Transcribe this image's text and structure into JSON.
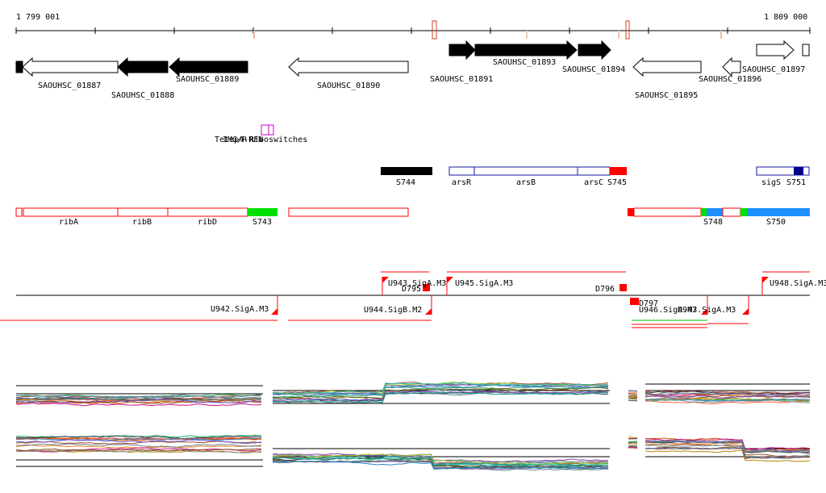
{
  "ruler": {
    "start_label": "1 799 001",
    "end_label": "1 809 000"
  },
  "genes": [
    {
      "id": "SAOUHSC_01887",
      "strand": "-",
      "fill": "white"
    },
    {
      "id": "SAOUHSC_01888",
      "strand": "-",
      "fill": "black"
    },
    {
      "id": "SAOUHSC_01889",
      "strand": "-",
      "fill": "black"
    },
    {
      "id": "SAOUHSC_01890",
      "strand": "-",
      "fill": "white"
    },
    {
      "id": "SAOUHSC_01891",
      "strand": "+",
      "fill": "black"
    },
    {
      "id": "SAOUHSC_01893",
      "strand": "+",
      "fill": "black"
    },
    {
      "id": "SAOUHSC_01894",
      "strand": "+",
      "fill": "black"
    },
    {
      "id": "SAOUHSC_01895",
      "strand": "-",
      "fill": "white"
    },
    {
      "id": "SAOUHSC_01896",
      "strand": "-",
      "fill": "white"
    },
    {
      "id": "SAOUHSC_01897",
      "strand": "+",
      "fill": "white"
    }
  ],
  "riboswitch": {
    "label_a": "Tetep4-RFN",
    "label_b": "Riboswitches",
    "label_c": "IMG/R"
  },
  "operons": [
    {
      "id": "S744",
      "color": "#000000"
    },
    {
      "id": "arsR",
      "color": "#1a1aa0"
    },
    {
      "id": "arsB",
      "color": "#1a1aa0"
    },
    {
      "id": "arsC",
      "color": "#1a1aa0"
    },
    {
      "id": "S745",
      "color": "#ff0000"
    },
    {
      "id": "sigS",
      "color": "#1a1aa0"
    },
    {
      "id": "S751",
      "color": "#00008b"
    }
  ],
  "transcripts": [
    {
      "id": "ribA"
    },
    {
      "id": "ribB"
    },
    {
      "id": "ribD"
    },
    {
      "id": "S743",
      "color": "#00e000"
    },
    {
      "id": "S748",
      "color": "#1e90ff"
    },
    {
      "id": "S750",
      "color": "#1e90ff"
    }
  ],
  "promoters": [
    {
      "id": "U942.SigA.M3"
    },
    {
      "id": "U943.SigA.M3"
    },
    {
      "id": "D795"
    },
    {
      "id": "U944.SigB.M2"
    },
    {
      "id": "U945.SigA.M3"
    },
    {
      "id": "D796"
    },
    {
      "id": "D797"
    },
    {
      "id": "U946.SigA.M3"
    },
    {
      "id": "U947.SigA.M3"
    },
    {
      "id": "U948.SigA.M3"
    }
  ],
  "colors": {
    "promoter_red": "#ff0000",
    "gene_outline": "#000000",
    "operon_blue": "#1a1aa0",
    "transcript_red": "#ff0000"
  }
}
